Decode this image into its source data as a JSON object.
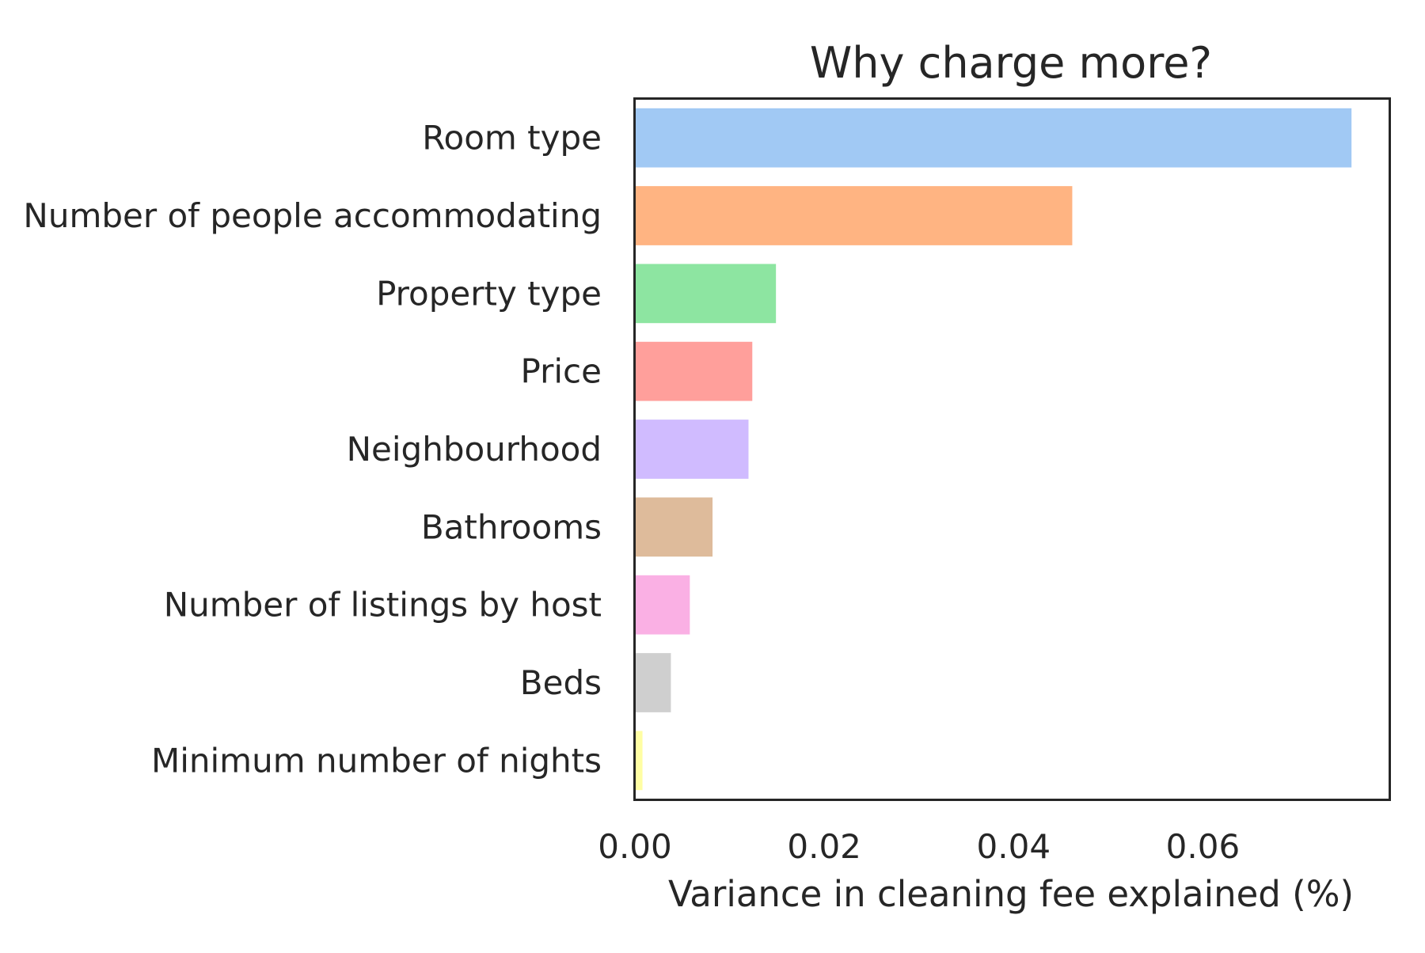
{
  "chart_data": {
    "type": "bar",
    "orientation": "horizontal",
    "title": "Why charge more?",
    "xlabel": "Variance in cleaning fee explained (%)",
    "ylabel": "",
    "xlim": [
      0,
      0.0797
    ],
    "xticks": [
      0.0,
      0.02,
      0.04,
      0.06
    ],
    "xtick_labels": [
      "0.00",
      "0.02",
      "0.04",
      "0.06"
    ],
    "grid": false,
    "legend": "none",
    "categories": [
      "Room type",
      "Number of people accommodating",
      "Property type",
      "Price",
      "Neighbourhood",
      "Bathrooms",
      "Number of listings by host",
      "Beds",
      "Minimum number of nights"
    ],
    "values": [
      0.0757,
      0.0462,
      0.0149,
      0.0124,
      0.012,
      0.0082,
      0.0058,
      0.0038,
      0.0008
    ],
    "colors": [
      "#a1c9f4",
      "#ffb482",
      "#8de5a1",
      "#ff9f9b",
      "#d0bbff",
      "#debb9b",
      "#fab0e4",
      "#cfcfcf",
      "#fffea3"
    ]
  }
}
